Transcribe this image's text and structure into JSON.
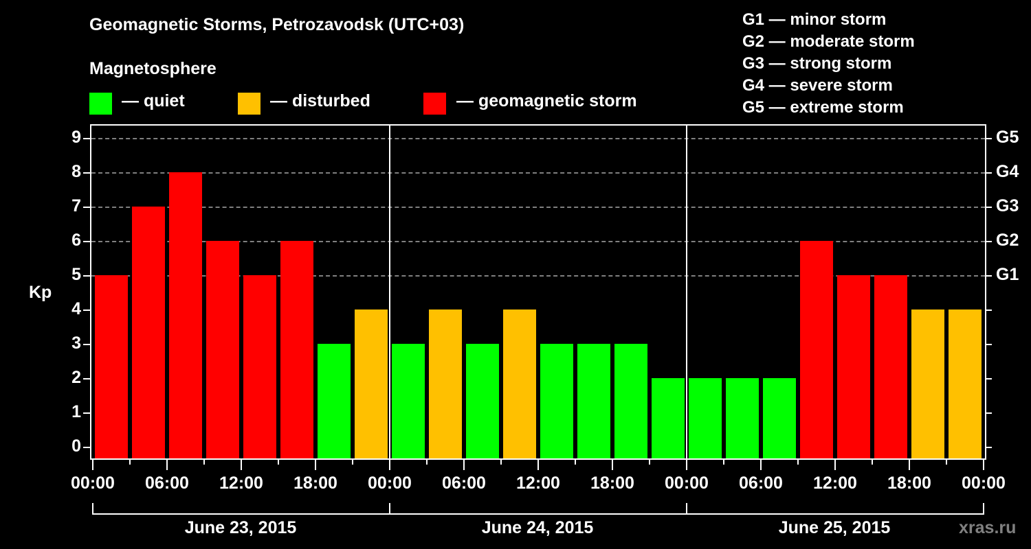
{
  "header": {
    "title": "Geomagnetic Storms, Petrozavodsk (UTC+03)",
    "subtitle": "Magnetosphere"
  },
  "legend": {
    "items": [
      {
        "label": "— quiet",
        "color": "#00FF00"
      },
      {
        "label": "— disturbed",
        "color": "#FFC000"
      },
      {
        "label": "— geomagnetic storm",
        "color": "#FF0000"
      }
    ],
    "storm_scale": [
      "G1 — minor storm",
      "G2 — moderate storm",
      "G3 — strong storm",
      "G4 — severe storm",
      "G5 — extreme storm"
    ]
  },
  "watermark": "xras.ru",
  "chart_data": {
    "type": "bar",
    "title": "Geomagnetic Storms, Petrozavodsk (UTC+03)",
    "ylabel": "Kp",
    "xlabel": "",
    "ylim": [
      0,
      9
    ],
    "yticks": [
      "0",
      "1",
      "2",
      "3",
      "4",
      "5",
      "6",
      "7",
      "8",
      "9"
    ],
    "right_axis_labels": [
      {
        "kp": 5,
        "label": "G1"
      },
      {
        "kp": 6,
        "label": "G2"
      },
      {
        "kp": 7,
        "label": "G3"
      },
      {
        "kp": 8,
        "label": "G4"
      },
      {
        "kp": 9,
        "label": "G5"
      }
    ],
    "grid": "dashed horizontal lines at Kp 5–9",
    "xtick_labels": [
      "00:00",
      "06:00",
      "12:00",
      "18:00",
      "00:00",
      "06:00",
      "12:00",
      "18:00",
      "00:00",
      "06:00",
      "12:00",
      "18:00",
      "00:00"
    ],
    "dates": [
      "June 23, 2015",
      "June 24, 2015",
      "June 25, 2015"
    ],
    "interval_hours": 3,
    "categories": [
      "Jun23 00-03",
      "Jun23 03-06",
      "Jun23 06-09",
      "Jun23 09-12",
      "Jun23 12-15",
      "Jun23 15-18",
      "Jun23 18-21",
      "Jun23 21-24",
      "Jun24 00-03",
      "Jun24 03-06",
      "Jun24 06-09",
      "Jun24 09-12",
      "Jun24 12-15",
      "Jun24 15-18",
      "Jun24 18-21",
      "Jun24 21-24",
      "Jun25 00-03",
      "Jun25 03-06",
      "Jun25 06-09",
      "Jun25 09-12",
      "Jun25 12-15",
      "Jun25 15-18",
      "Jun25 18-21",
      "Jun25 21-24"
    ],
    "values": [
      5,
      7,
      8,
      6,
      5,
      6,
      3,
      4,
      3,
      4,
      3,
      4,
      3,
      3,
      3,
      2,
      2,
      2,
      2,
      6,
      5,
      5,
      4,
      4
    ],
    "color_rule": {
      "quiet (Kp<=3)": "#00FF00",
      "disturbed (Kp=4)": "#FFC000",
      "storm (Kp>=5)": "#FF0000"
    }
  }
}
